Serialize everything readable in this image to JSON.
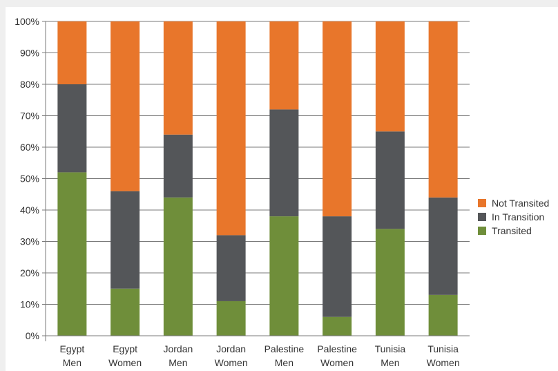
{
  "chart_data": {
    "type": "bar",
    "stacked": true,
    "percent": true,
    "categories": [
      [
        "Egypt",
        "Men"
      ],
      [
        "Egypt",
        "Women"
      ],
      [
        "Jordan",
        "Men"
      ],
      [
        "Jordan",
        "Women"
      ],
      [
        "Palestine",
        "Men"
      ],
      [
        "Palestine",
        "Women"
      ],
      [
        "Tunisia",
        "Men"
      ],
      [
        "Tunisia",
        "Women"
      ]
    ],
    "series": [
      {
        "name": "Transited",
        "color": "#6f8e3a",
        "values": [
          52,
          15,
          44,
          11,
          38,
          6,
          34,
          13
        ]
      },
      {
        "name": "In Transition",
        "color": "#545659",
        "values": [
          28,
          31,
          20,
          21,
          34,
          32,
          31,
          31
        ]
      },
      {
        "name": "Not Transited",
        "color": "#e8762b",
        "values": [
          20,
          54,
          36,
          68,
          28,
          62,
          35,
          56
        ]
      }
    ],
    "legend_order": [
      "Not Transited",
      "In Transition",
      "Transited"
    ],
    "ylim": [
      0,
      100
    ],
    "yticks": [
      "0%",
      "10%",
      "20%",
      "30%",
      "40%",
      "50%",
      "60%",
      "70%",
      "80%",
      "90%",
      "100%"
    ],
    "title": "",
    "xlabel": "",
    "ylabel": "",
    "grid": true,
    "legend_position": "right"
  }
}
